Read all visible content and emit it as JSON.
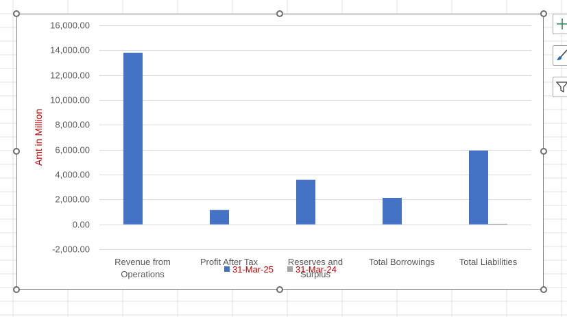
{
  "chart_data": {
    "type": "bar",
    "title": "",
    "xlabel": "",
    "ylabel": "Amt in Million",
    "categories": [
      [
        "Revenue from",
        "Operations"
      ],
      [
        "Profit After Tax"
      ],
      [
        "Reserves and",
        "Surplus"
      ],
      [
        "Total Borrowings"
      ],
      [
        "Total Liabilities"
      ]
    ],
    "series": [
      {
        "name": "31-Mar-25",
        "values": [
          13800,
          1150,
          3580,
          2130,
          5930
        ],
        "color": "#4472C4"
      },
      {
        "name": "31-Mar-24",
        "values": [
          0,
          0,
          0,
          0,
          40
        ],
        "color": "#A5A5A5"
      }
    ],
    "ylim": [
      -2000,
      16000
    ],
    "yticks": [
      "16,000.00",
      "14,000.00",
      "12,000.00",
      "10,000.00",
      "8,000.00",
      "6,000.00",
      "4,000.00",
      "2,000.00",
      "0.00",
      "-2,000.00"
    ],
    "ytick_values": [
      16000,
      14000,
      12000,
      10000,
      8000,
      6000,
      4000,
      2000,
      0,
      -2000
    ],
    "grid": true,
    "legend_position": "bottom",
    "label_color": "#C00000",
    "grid_color": "#D9D9D9",
    "axis_text_color": "#595959"
  },
  "side_buttons": [
    {
      "icon": "plus-icon",
      "color": "#2E8B57"
    },
    {
      "icon": "brush-icon",
      "color": "#2F6FB0"
    },
    {
      "icon": "filter-icon",
      "color": "#404040"
    }
  ]
}
